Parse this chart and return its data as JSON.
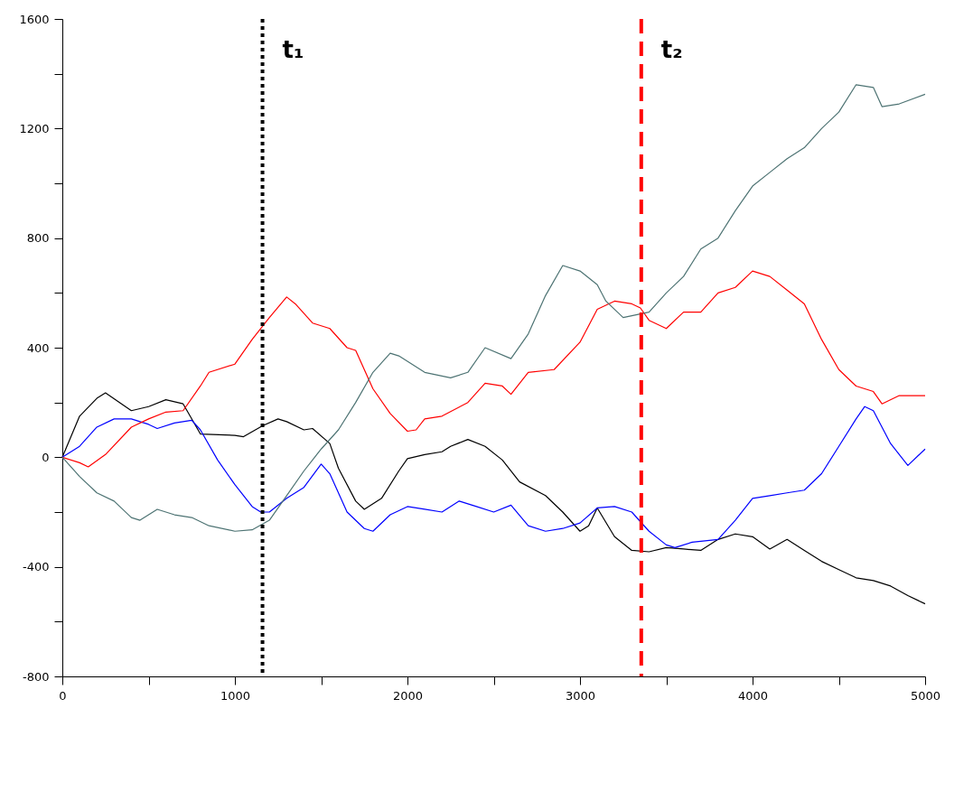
{
  "chart_data": {
    "type": "line",
    "xlim": [
      0,
      5000
    ],
    "ylim": [
      -800,
      1600
    ],
    "xticks": [
      0,
      {
        "value": 500,
        "label": null
      },
      1000,
      {
        "value": 1500,
        "label": null
      },
      2000,
      {
        "value": 2500,
        "label": null
      },
      3000,
      {
        "value": 3500,
        "label": null
      },
      4000,
      {
        "value": 4500,
        "label": null
      },
      5000
    ],
    "yticks": [
      -800,
      {
        "value": -600,
        "label": null
      },
      -400,
      {
        "value": -200,
        "label": null
      },
      0,
      {
        "value": 200,
        "label": null
      },
      400,
      {
        "value": 600,
        "label": null
      },
      800,
      {
        "value": 1000,
        "label": null
      },
      1200,
      {
        "value": 1400,
        "label": null
      },
      1600
    ],
    "grid": false,
    "marker": "none",
    "line_style": "solid",
    "series": [
      {
        "color": "#000000",
        "x": [
          0,
          100,
          200,
          250,
          400,
          500,
          600,
          700,
          800,
          1000,
          1050,
          1160,
          1250,
          1300,
          1400,
          1450,
          1550,
          1600,
          1700,
          1750,
          1850,
          1950,
          2000,
          2100,
          2200,
          2250,
          2350,
          2450,
          2550,
          2650,
          2800,
          2900,
          3000,
          3050,
          3100,
          3200,
          3300,
          3400,
          3500,
          3600,
          3700,
          3800,
          3900,
          4000,
          4100,
          4200,
          4300,
          4400,
          4500,
          4600,
          4700,
          4800,
          4900,
          5000
        ],
        "values": [
          0,
          150,
          215,
          235,
          170,
          185,
          210,
          195,
          85,
          80,
          75,
          115,
          140,
          130,
          100,
          105,
          50,
          -40,
          -160,
          -190,
          -150,
          -50,
          -5,
          10,
          20,
          40,
          65,
          40,
          -10,
          -90,
          -140,
          -200,
          -270,
          -250,
          -185,
          -290,
          -340,
          -345,
          -330,
          -335,
          -340,
          -300,
          -280,
          -290,
          -335,
          -300,
          -340,
          -380,
          -410,
          -440,
          -450,
          -470,
          -505,
          -535
        ]
      },
      {
        "color": "#0000ff",
        "x": [
          0,
          100,
          200,
          300,
          400,
          500,
          550,
          650,
          750,
          800,
          900,
          1000,
          1100,
          1150,
          1200,
          1300,
          1400,
          1500,
          1550,
          1650,
          1750,
          1800,
          1900,
          2000,
          2100,
          2200,
          2300,
          2400,
          2500,
          2600,
          2700,
          2800,
          2900,
          3000,
          3100,
          3200,
          3300,
          3400,
          3500,
          3550,
          3650,
          3800,
          3900,
          4000,
          4100,
          4200,
          4300,
          4400,
          4500,
          4600,
          4650,
          4700,
          4800,
          4900,
          5000
        ],
        "values": [
          0,
          40,
          110,
          140,
          140,
          120,
          105,
          125,
          135,
          100,
          -10,
          -100,
          -180,
          -200,
          -200,
          -150,
          -110,
          -25,
          -60,
          -200,
          -260,
          -270,
          -210,
          -180,
          -190,
          -200,
          -160,
          -180,
          -200,
          -175,
          -250,
          -270,
          -260,
          -240,
          -185,
          -180,
          -200,
          -270,
          -320,
          -330,
          -310,
          -300,
          -230,
          -150,
          -140,
          -130,
          -120,
          -60,
          40,
          140,
          185,
          170,
          50,
          -30,
          30
        ]
      },
      {
        "color": "#ff0000",
        "x": [
          0,
          100,
          150,
          250,
          400,
          500,
          600,
          700,
          800,
          850,
          1000,
          1100,
          1200,
          1300,
          1350,
          1450,
          1550,
          1650,
          1700,
          1800,
          1900,
          2000,
          2050,
          2100,
          2200,
          2350,
          2450,
          2550,
          2600,
          2700,
          2850,
          3000,
          3100,
          3200,
          3300,
          3350,
          3400,
          3500,
          3600,
          3700,
          3800,
          3900,
          4000,
          4100,
          4200,
          4300,
          4400,
          4500,
          4600,
          4700,
          4750,
          4850,
          5000
        ],
        "values": [
          0,
          -20,
          -35,
          10,
          110,
          140,
          165,
          170,
          260,
          310,
          340,
          430,
          510,
          585,
          560,
          490,
          470,
          400,
          390,
          250,
          160,
          95,
          100,
          140,
          150,
          200,
          270,
          260,
          230,
          310,
          320,
          420,
          540,
          570,
          560,
          545,
          500,
          470,
          530,
          530,
          600,
          620,
          680,
          660,
          610,
          560,
          430,
          320,
          260,
          240,
          195,
          225,
          225
        ]
      },
      {
        "color": "#4d7373",
        "x": [
          0,
          100,
          200,
          300,
          400,
          450,
          550,
          650,
          750,
          850,
          1000,
          1100,
          1200,
          1300,
          1400,
          1500,
          1600,
          1700,
          1800,
          1900,
          1950,
          2100,
          2250,
          2350,
          2450,
          2600,
          2700,
          2800,
          2900,
          3000,
          3100,
          3150,
          3250,
          3400,
          3500,
          3600,
          3700,
          3800,
          3900,
          4000,
          4100,
          4200,
          4300,
          4400,
          4500,
          4600,
          4700,
          4750,
          4850,
          5000
        ],
        "values": [
          0,
          -70,
          -130,
          -160,
          -220,
          -230,
          -190,
          -210,
          -220,
          -250,
          -270,
          -265,
          -230,
          -140,
          -50,
          30,
          100,
          200,
          310,
          380,
          370,
          310,
          290,
          310,
          400,
          360,
          450,
          590,
          700,
          680,
          630,
          570,
          510,
          530,
          600,
          660,
          760,
          800,
          900,
          990,
          1040,
          1090,
          1130,
          1200,
          1260,
          1360,
          1350,
          1280,
          1290,
          1325
        ]
      }
    ],
    "ref_lines": [
      {
        "axis": "x",
        "value": 1160,
        "label": "t₁",
        "color": "#000000",
        "line_style": "dotted"
      },
      {
        "axis": "x",
        "value": 3355,
        "label": "t₂",
        "color": "#ff0000",
        "line_style": "dashed"
      }
    ]
  }
}
